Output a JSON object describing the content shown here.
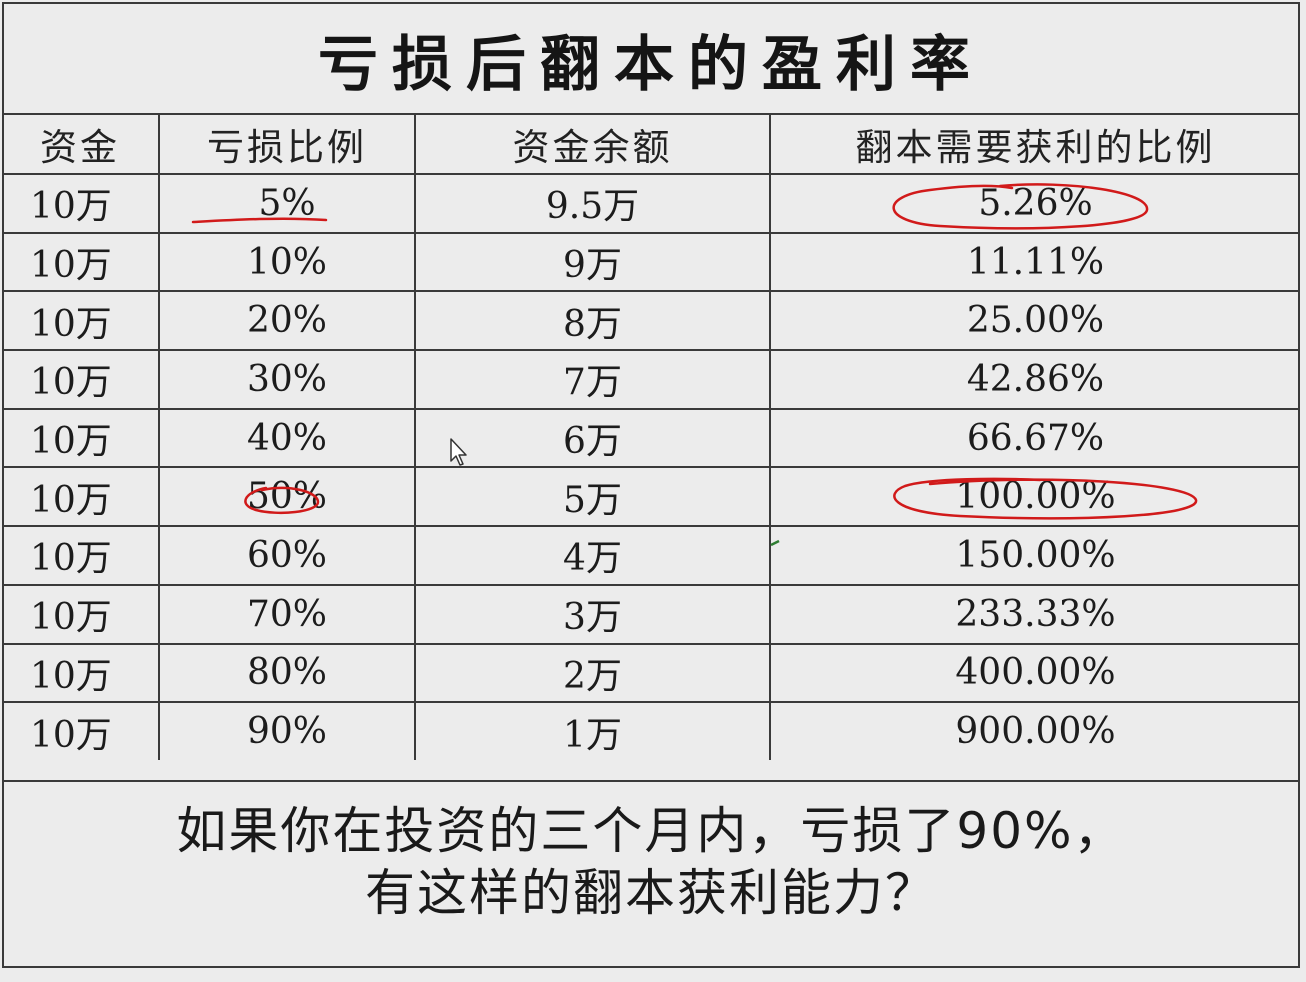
{
  "title": "亏损后翻本的盈利率",
  "table": {
    "headers": [
      "资金",
      "亏损比例",
      "资金余额",
      "翻本需要获利的比例"
    ],
    "rows": [
      [
        "10万",
        "5%",
        "9.5万",
        "5.26%"
      ],
      [
        "10万",
        "10%",
        "9万",
        "11.11%"
      ],
      [
        "10万",
        "20%",
        "8万",
        "25.00%"
      ],
      [
        "10万",
        "30%",
        "7万",
        "42.86%"
      ],
      [
        "10万",
        "40%",
        "6万",
        "66.67%"
      ],
      [
        "10万",
        "50%",
        "5万",
        "100.00%"
      ],
      [
        "10万",
        "60%",
        "4万",
        "150.00%"
      ],
      [
        "10万",
        "70%",
        "3万",
        "233.33%"
      ],
      [
        "10万",
        "80%",
        "2万",
        "400.00%"
      ],
      [
        "10万",
        "90%",
        "1万",
        "900.00%"
      ]
    ]
  },
  "note": {
    "line1": "如果你在投资的三个月内，亏损了90%，",
    "line2": "有这样的翻本获利能力？"
  },
  "colors": {
    "annotation_pen": "#d11a1a",
    "grid_line": "#3a3a3a"
  }
}
